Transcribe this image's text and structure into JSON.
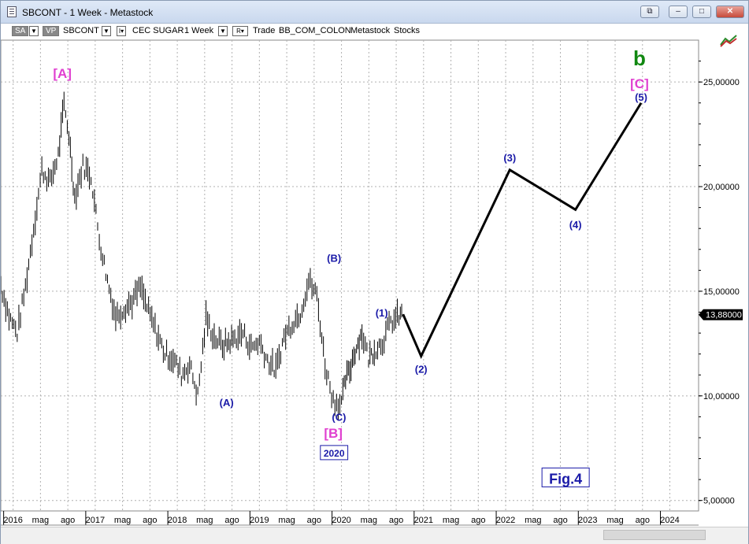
{
  "window": {
    "title": "SBCONT - 1 Week - Metastock",
    "buttons": {
      "restore_down": "⧉",
      "minimize": "–",
      "maximize": "□",
      "close": "✕"
    }
  },
  "toolbar": {
    "sa_label": "SA",
    "vp_label": "VP",
    "symbol": "SBCONT",
    "description": "CEC SUGAR",
    "period": "1 Week",
    "r_label": "R",
    "trade_label": "Trade",
    "template": "BB_COM_COLON",
    "source": "Metastock",
    "category": "Stocks"
  },
  "icons": {
    "app": "chart-document-icon",
    "tools": "chart-tools-icon",
    "dropdown": "chevron-down-icon"
  },
  "colors": {
    "wave_black": "#000000",
    "wave_blue": "#1a1aa8",
    "wave_magenta": "#e040d0",
    "wave_green": "#118811",
    "price_bars": "#000000",
    "grid": "#b0b0b0"
  },
  "chart_data": {
    "type": "line",
    "title": "",
    "xlabel": "",
    "ylabel": "",
    "ylim": [
      4.5,
      27
    ],
    "y_ticks": [
      {
        "value": 5,
        "label": "5,00000"
      },
      {
        "value": 10,
        "label": "10,00000"
      },
      {
        "value": 15,
        "label": "15,00000"
      },
      {
        "value": 20,
        "label": "20,00000"
      },
      {
        "value": 25,
        "label": "25,00000"
      }
    ],
    "x_ticks": [
      "2016",
      "mag",
      "ago",
      "2017",
      "mag",
      "ago",
      "2018",
      "mag",
      "ago",
      "2019",
      "mag",
      "ago",
      "2020",
      "mag",
      "ago",
      "2021",
      "mag",
      "ago",
      "2022",
      "mag",
      "ago",
      "2023",
      "mag",
      "ago",
      "2024"
    ],
    "last_price_label": "13,88000",
    "last_price": 13.88,
    "price_series": {
      "name": "",
      "x": [
        2015.85,
        2015.95,
        2016.05,
        2016.15,
        2016.25,
        2016.35,
        2016.45,
        2016.55,
        2016.62,
        2016.68,
        2016.75,
        2016.85,
        2016.95,
        2017.05,
        2017.15,
        2017.25,
        2017.35,
        2017.45,
        2017.55,
        2017.65,
        2017.75,
        2017.85,
        2017.95,
        2018.05,
        2018.15,
        2018.25,
        2018.35,
        2018.45,
        2018.55,
        2018.68,
        2018.8,
        2018.9,
        2019.0,
        2019.1,
        2019.2,
        2019.3,
        2019.4,
        2019.5,
        2019.6,
        2019.7,
        2019.8,
        2019.9,
        2020.0,
        2020.05,
        2020.1,
        2020.15,
        2020.2,
        2020.25,
        2020.33,
        2020.4,
        2020.5,
        2020.6,
        2020.7,
        2020.75
      ],
      "y": [
        15.3,
        13.8,
        13.0,
        15.2,
        18.0,
        20.8,
        20.2,
        21.5,
        23.9,
        22.5,
        19.5,
        21.0,
        20.5,
        17.5,
        15.5,
        13.8,
        14.2,
        14.5,
        15.2,
        14.0,
        13.0,
        12.0,
        11.8,
        11.0,
        11.5,
        10.0,
        13.7,
        12.8,
        12.4,
        12.7,
        13.0,
        12.3,
        12.6,
        11.7,
        11.2,
        12.8,
        13.5,
        14.0,
        15.5,
        14.8,
        11.5,
        9.8,
        9.6,
        10.8,
        11.2,
        12.0,
        12.5,
        13.0,
        11.8,
        12.2,
        12.6,
        13.5,
        13.8,
        13.9
      ]
    },
    "wave_projection": {
      "name": "",
      "x": [
        2020.75,
        2020.97,
        2022.05,
        2022.85,
        2023.65
      ],
      "y": [
        13.9,
        11.9,
        20.8,
        18.9,
        24.0
      ]
    },
    "annotations": [
      {
        "text": "[A]",
        "x": 2016.6,
        "y": 25.2,
        "color": "wave_magenta",
        "size": 17
      },
      {
        "text": "(A)",
        "x": 2018.6,
        "y": 9.5,
        "color": "wave_blue",
        "size": 13
      },
      {
        "text": "(B)",
        "x": 2019.91,
        "y": 16.4,
        "color": "wave_blue",
        "size": 13
      },
      {
        "text": "(C)",
        "x": 2019.97,
        "y": 8.8,
        "color": "wave_blue",
        "size": 13
      },
      {
        "text": "[B]",
        "x": 2019.9,
        "y": 8.0,
        "color": "wave_magenta",
        "size": 17
      },
      {
        "text": "(1)",
        "x": 2020.49,
        "y": 13.8,
        "color": "wave_blue",
        "size": 13
      },
      {
        "text": "(2)",
        "x": 2020.97,
        "y": 11.1,
        "color": "wave_blue",
        "size": 13
      },
      {
        "text": "(3)",
        "x": 2022.05,
        "y": 21.2,
        "color": "wave_blue",
        "size": 13
      },
      {
        "text": "(4)",
        "x": 2022.85,
        "y": 18.0,
        "color": "wave_blue",
        "size": 13
      },
      {
        "text": "(5)",
        "x": 2023.65,
        "y": 24.1,
        "color": "wave_blue",
        "size": 13
      },
      {
        "text": "[C]",
        "x": 2023.63,
        "y": 24.7,
        "color": "wave_magenta",
        "size": 17
      },
      {
        "text": "b",
        "x": 2023.63,
        "y": 25.8,
        "color": "wave_green",
        "size": 26
      }
    ],
    "boxed_labels": [
      {
        "text": "2020",
        "x": 2019.91,
        "y": 7.1,
        "size": 12
      },
      {
        "text": "Fig.4",
        "x": 2022.73,
        "y": 5.8,
        "size": 18
      }
    ]
  }
}
